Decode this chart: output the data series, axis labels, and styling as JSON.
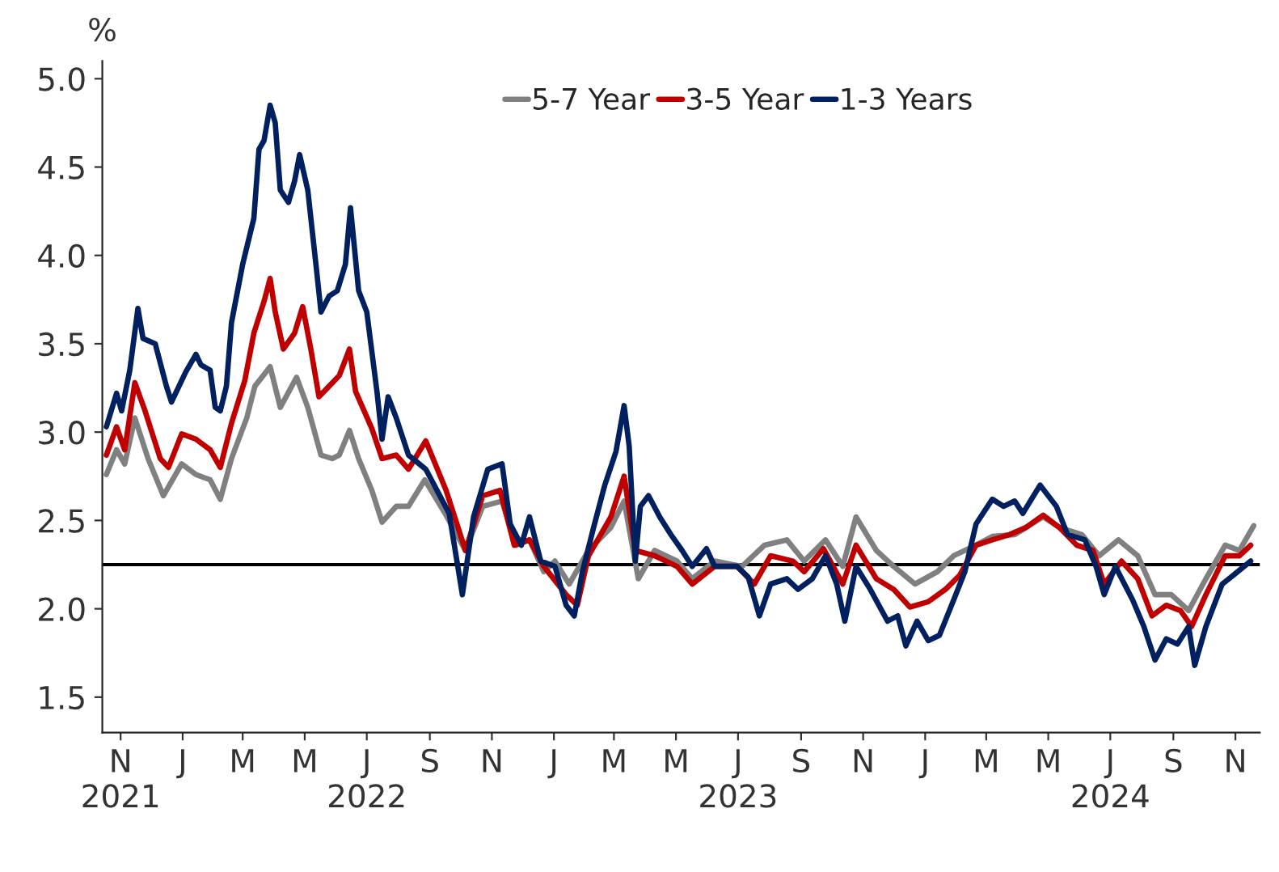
{
  "chart_data": {
    "type": "line",
    "ylabel": "%",
    "legend": "top",
    "grid": false,
    "marker": "none",
    "line_style": "solid",
    "xlim": [
      "2021-10-14",
      "2024-11-25"
    ],
    "ylim": [
      1.3,
      5.1
    ],
    "yticks": [
      1.5,
      {
        "value": 2,
        "label": "2.0"
      },
      2.5,
      {
        "value": 3,
        "label": "3.0"
      },
      3.5,
      {
        "value": 4,
        "label": "4.0"
      },
      4.5,
      {
        "value": 5,
        "label": "5.0"
      }
    ],
    "xticks": [
      {
        "value": "2021-11-01",
        "label": "N\n2021"
      },
      {
        "value": "2022-01-01",
        "label": "J"
      },
      {
        "value": "2022-03-01",
        "label": "M"
      },
      {
        "value": "2022-05-01",
        "label": "M"
      },
      {
        "value": "2022-07-01",
        "label": "J\n2022"
      },
      {
        "value": "2022-09-01",
        "label": "S"
      },
      {
        "value": "2022-11-01",
        "label": "N"
      },
      {
        "value": "2023-01-01",
        "label": "J"
      },
      {
        "value": "2023-03-01",
        "label": "M"
      },
      {
        "value": "2023-05-01",
        "label": "M"
      },
      {
        "value": "2023-07-01",
        "label": "J\n2023"
      },
      {
        "value": "2023-09-01",
        "label": "S"
      },
      {
        "value": "2023-11-01",
        "label": "N"
      },
      {
        "value": "2024-01-01",
        "label": "J"
      },
      {
        "value": "2024-03-01",
        "label": "M"
      },
      {
        "value": "2024-05-01",
        "label": "M"
      },
      {
        "value": "2024-07-01",
        "label": "J\n2024"
      },
      {
        "value": "2024-09-01",
        "label": "S"
      },
      {
        "value": "2024-11-01",
        "label": "N"
      }
    ],
    "ref_lines": [
      {
        "axis": "y",
        "value": 2.25,
        "color": "#000000"
      }
    ],
    "series": [
      {
        "name": "5-7 Year",
        "color": "#808080",
        "x": [
          "2021-10-18",
          "2021-10-28",
          "2021-11-05",
          "2021-11-15",
          "2021-11-28",
          "2021-12-13",
          "2021-12-31",
          "2022-01-14",
          "2022-01-28",
          "2022-02-07",
          "2022-02-18",
          "2022-03-05",
          "2022-03-13",
          "2022-03-28",
          "2022-04-07",
          "2022-04-23",
          "2022-05-04",
          "2022-05-17",
          "2022-05-28",
          "2022-06-04",
          "2022-06-14",
          "2022-06-23",
          "2022-07-06",
          "2022-07-16",
          "2022-07-30",
          "2022-08-11",
          "2022-08-27",
          "2022-09-16",
          "2022-10-06",
          "2022-10-23",
          "2022-11-11",
          "2022-11-25",
          "2022-12-08",
          "2022-12-22",
          "2023-01-02",
          "2023-01-16",
          "2023-02-04",
          "2023-02-26",
          "2023-03-11",
          "2023-03-25",
          "2023-04-10",
          "2023-05-02",
          "2023-05-17",
          "2023-06-08",
          "2023-07-05",
          "2023-07-27",
          "2023-08-18",
          "2023-09-04",
          "2023-09-25",
          "2023-10-12",
          "2023-10-25",
          "2023-11-14",
          "2023-12-01",
          "2023-12-22",
          "2024-01-13",
          "2024-01-29",
          "2024-02-20",
          "2024-03-07",
          "2024-03-29",
          "2024-04-26",
          "2024-05-12",
          "2024-06-03",
          "2024-06-20",
          "2024-07-09",
          "2024-07-28",
          "2024-08-14",
          "2024-08-30",
          "2024-09-16",
          "2024-10-03",
          "2024-10-22",
          "2024-11-05",
          "2024-11-19"
        ],
        "values": [
          2.76,
          2.9,
          2.82,
          3.08,
          2.85,
          2.64,
          2.82,
          2.76,
          2.73,
          2.62,
          2.85,
          3.08,
          3.26,
          3.37,
          3.14,
          3.31,
          3.14,
          2.87,
          2.85,
          2.87,
          3.01,
          2.85,
          2.67,
          2.49,
          2.58,
          2.58,
          2.73,
          2.54,
          2.33,
          2.58,
          2.61,
          2.36,
          2.39,
          2.21,
          2.27,
          2.14,
          2.33,
          2.46,
          2.61,
          2.17,
          2.33,
          2.27,
          2.17,
          2.27,
          2.24,
          2.36,
          2.39,
          2.27,
          2.39,
          2.24,
          2.52,
          2.33,
          2.24,
          2.14,
          2.21,
          2.3,
          2.36,
          2.41,
          2.42,
          2.52,
          2.46,
          2.42,
          2.3,
          2.39,
          2.3,
          2.08,
          2.08,
          1.99,
          2.17,
          2.36,
          2.33,
          2.47
        ]
      },
      {
        "name": "3-5 Year",
        "color": "#c00000",
        "x": [
          "2021-10-18",
          "2021-10-28",
          "2021-11-05",
          "2021-11-15",
          "2021-11-25",
          "2021-12-10",
          "2021-12-18",
          "2021-12-31",
          "2022-01-14",
          "2022-01-28",
          "2022-02-07",
          "2022-02-18",
          "2022-03-03",
          "2022-03-12",
          "2022-03-22",
          "2022-03-28",
          "2022-04-02",
          "2022-04-10",
          "2022-04-21",
          "2022-04-29",
          "2022-05-07",
          "2022-05-15",
          "2022-05-25",
          "2022-06-04",
          "2022-06-14",
          "2022-06-20",
          "2022-07-06",
          "2022-07-16",
          "2022-07-30",
          "2022-08-11",
          "2022-08-28",
          "2022-09-17",
          "2022-10-06",
          "2022-10-23",
          "2022-11-09",
          "2022-11-23",
          "2022-12-08",
          "2022-12-22",
          "2023-01-13",
          "2023-01-24",
          "2023-02-04",
          "2023-02-26",
          "2023-03-11",
          "2023-03-22",
          "2023-04-10",
          "2023-05-02",
          "2023-05-17",
          "2023-06-08",
          "2023-06-30",
          "2023-07-17",
          "2023-08-02",
          "2023-08-24",
          "2023-09-04",
          "2023-09-23",
          "2023-10-12",
          "2023-10-25",
          "2023-11-14",
          "2023-12-01",
          "2023-12-17",
          "2024-01-04",
          "2024-01-21",
          "2024-02-04",
          "2024-02-20",
          "2024-03-07",
          "2024-03-24",
          "2024-04-09",
          "2024-04-26",
          "2024-05-12",
          "2024-05-29",
          "2024-06-14",
          "2024-06-25",
          "2024-07-12",
          "2024-07-28",
          "2024-08-11",
          "2024-08-25",
          "2024-09-08",
          "2024-09-19",
          "2024-10-03",
          "2024-10-22",
          "2024-11-05",
          "2024-11-16"
        ],
        "values": [
          2.87,
          3.03,
          2.9,
          3.28,
          3.12,
          2.85,
          2.8,
          2.99,
          2.96,
          2.9,
          2.8,
          3.05,
          3.29,
          3.56,
          3.74,
          3.87,
          3.68,
          3.47,
          3.56,
          3.71,
          3.47,
          3.2,
          3.26,
          3.32,
          3.47,
          3.23,
          3.02,
          2.85,
          2.87,
          2.79,
          2.95,
          2.67,
          2.33,
          2.64,
          2.67,
          2.36,
          2.39,
          2.24,
          2.08,
          2.02,
          2.3,
          2.52,
          2.75,
          2.33,
          2.3,
          2.24,
          2.14,
          2.24,
          2.24,
          2.14,
          2.3,
          2.27,
          2.21,
          2.34,
          2.14,
          2.36,
          2.17,
          2.11,
          2.01,
          2.04,
          2.11,
          2.19,
          2.36,
          2.39,
          2.42,
          2.46,
          2.53,
          2.46,
          2.36,
          2.33,
          2.14,
          2.27,
          2.17,
          1.96,
          2.02,
          1.99,
          1.9,
          2.08,
          2.3,
          2.3,
          2.36
        ]
      },
      {
        "name": "1-3 Years",
        "color": "#002060",
        "x": [
          "2021-10-18",
          "2021-10-28",
          "2021-11-02",
          "2021-11-10",
          "2021-11-18",
          "2021-11-23",
          "2021-12-05",
          "2021-12-16",
          "2021-12-21",
          "2022-01-04",
          "2022-01-14",
          "2022-01-19",
          "2022-01-28",
          "2022-02-02",
          "2022-02-07",
          "2022-02-13",
          "2022-02-18",
          "2022-03-01",
          "2022-03-12",
          "2022-03-17",
          "2022-03-22",
          "2022-03-28",
          "2022-04-02",
          "2022-04-07",
          "2022-04-15",
          "2022-04-21",
          "2022-04-26",
          "2022-05-04",
          "2022-05-12",
          "2022-05-17",
          "2022-05-25",
          "2022-06-02",
          "2022-06-10",
          "2022-06-15",
          "2022-06-23",
          "2022-07-01",
          "2022-07-11",
          "2022-07-16",
          "2022-07-22",
          "2022-07-30",
          "2022-08-11",
          "2022-08-28",
          "2022-09-20",
          "2022-10-03",
          "2022-10-14",
          "2022-10-28",
          "2022-11-11",
          "2022-11-19",
          "2022-11-30",
          "2022-12-08",
          "2022-12-19",
          "2023-01-02",
          "2023-01-13",
          "2023-01-21",
          "2023-01-29",
          "2023-02-09",
          "2023-02-20",
          "2023-03-03",
          "2023-03-11",
          "2023-03-16",
          "2023-03-22",
          "2023-03-27",
          "2023-04-04",
          "2023-04-15",
          "2023-04-26",
          "2023-05-07",
          "2023-05-17",
          "2023-05-31",
          "2023-06-08",
          "2023-06-30",
          "2023-07-11",
          "2023-07-22",
          "2023-08-02",
          "2023-08-18",
          "2023-08-29",
          "2023-09-12",
          "2023-09-25",
          "2023-10-06",
          "2023-10-14",
          "2023-10-25",
          "2023-11-08",
          "2023-11-25",
          "2023-12-05",
          "2023-12-13",
          "2023-12-24",
          "2024-01-04",
          "2024-01-15",
          "2024-01-29",
          "2024-02-09",
          "2024-02-20",
          "2024-03-07",
          "2024-03-18",
          "2024-03-29",
          "2024-04-06",
          "2024-04-23",
          "2024-05-09",
          "2024-05-20",
          "2024-06-06",
          "2024-06-17",
          "2024-06-25",
          "2024-07-06",
          "2024-07-23",
          "2024-08-03",
          "2024-08-14",
          "2024-08-25",
          "2024-09-05",
          "2024-09-16",
          "2024-09-22",
          "2024-10-03",
          "2024-10-19",
          "2024-10-30",
          "2024-11-16"
        ],
        "values": [
          3.03,
          3.22,
          3.12,
          3.35,
          3.7,
          3.53,
          3.5,
          3.26,
          3.17,
          3.34,
          3.44,
          3.38,
          3.35,
          3.14,
          3.12,
          3.26,
          3.62,
          3.95,
          4.21,
          4.6,
          4.65,
          4.85,
          4.75,
          4.37,
          4.3,
          4.42,
          4.57,
          4.37,
          3.95,
          3.68,
          3.77,
          3.8,
          3.95,
          4.27,
          3.8,
          3.68,
          3.23,
          2.96,
          3.2,
          3.08,
          2.87,
          2.79,
          2.54,
          2.08,
          2.52,
          2.79,
          2.82,
          2.48,
          2.36,
          2.52,
          2.27,
          2.24,
          2.02,
          1.96,
          2.21,
          2.46,
          2.7,
          2.89,
          3.15,
          2.92,
          2.27,
          2.58,
          2.64,
          2.52,
          2.42,
          2.33,
          2.24,
          2.34,
          2.24,
          2.24,
          2.18,
          1.96,
          2.14,
          2.17,
          2.11,
          2.17,
          2.3,
          2.14,
          1.93,
          2.24,
          2.11,
          1.93,
          1.96,
          1.79,
          1.93,
          1.82,
          1.85,
          2.05,
          2.21,
          2.48,
          2.62,
          2.58,
          2.61,
          2.54,
          2.7,
          2.58,
          2.42,
          2.39,
          2.24,
          2.08,
          2.24,
          2.05,
          1.9,
          1.71,
          1.83,
          1.8,
          1.9,
          1.68,
          1.9,
          2.14,
          2.19,
          2.27
        ]
      }
    ]
  }
}
